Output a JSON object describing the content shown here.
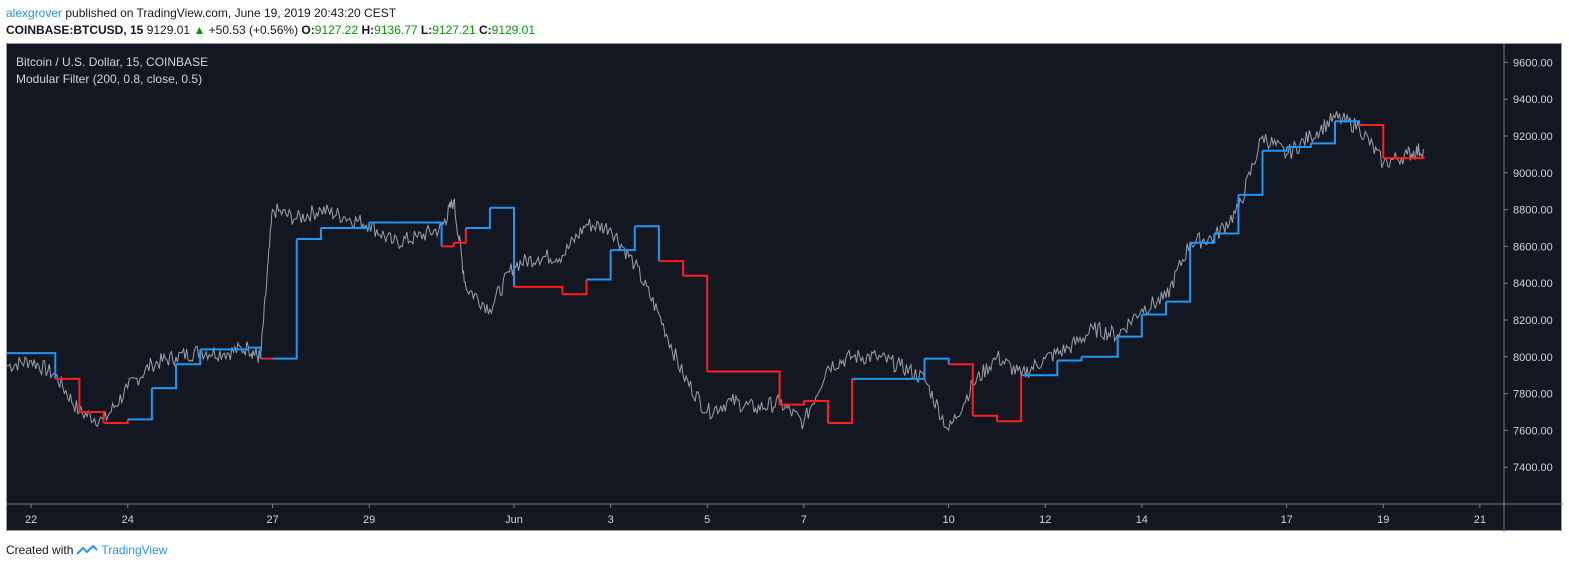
{
  "header": {
    "author": "alexgrover",
    "published": "published on TradingView.com, June 19, 2019 20:43:20 CEST",
    "symbol": "COINBASE:BTCUSD, 15",
    "price": "9129.01",
    "change_arrow": "▲",
    "change": "+50.53 (+0.56%)",
    "o_label": "O:",
    "o_val": "9127.22",
    "h_label": "H:",
    "h_val": "9136.77",
    "l_label": "L:",
    "l_val": "9127.21",
    "c_label": "C:",
    "c_val": "9129.01"
  },
  "legend": {
    "line1": "Bitcoin / U.S. Dollar, 15, COINBASE",
    "line2": "Modular Filter (200, 0.8, close, 0.5)"
  },
  "footer": {
    "created": "Created with",
    "brand": "TradingView"
  },
  "colors": {
    "background": "#131722",
    "price": "#9aa0ab",
    "filter_up": "#2196f3",
    "filter_down": "#ff1e1e",
    "axis_text": "#d1d4dc",
    "grid": "#2a2e39"
  },
  "chart_data": {
    "type": "line",
    "ylim": [
      7200,
      9700
    ],
    "y_ticks": [
      "9600.00",
      "9400.00",
      "9200.00",
      "9000.00",
      "8800.00",
      "8600.00",
      "8400.00",
      "8200.00",
      "8000.00",
      "7800.00",
      "7600.00",
      "7400.00"
    ],
    "x_ticks": [
      "22",
      "24",
      "27",
      "29",
      "Jun",
      "3",
      "5",
      "7",
      "10",
      "12",
      "14",
      "17",
      "19",
      "21"
    ],
    "x_range": [
      "2019-05-21T12:00",
      "2019-06-21T12:00"
    ],
    "series": [
      {
        "kind": "price",
        "x": [
          "2019-05-21T12:00",
          "2019-05-22T00:00",
          "2019-05-22T12:00",
          "2019-05-23T00:00",
          "2019-05-23T12:00",
          "2019-05-24T00:00",
          "2019-05-24T12:00",
          "2019-05-25T00:00",
          "2019-05-25T12:00",
          "2019-05-26T00:00",
          "2019-05-26T12:00",
          "2019-05-26T18:00",
          "2019-05-27T00:00",
          "2019-05-27T12:00",
          "2019-05-28T00:00",
          "2019-05-28T12:00",
          "2019-05-29T00:00",
          "2019-05-29T12:00",
          "2019-05-30T00:00",
          "2019-05-30T12:00",
          "2019-05-30T18:00",
          "2019-05-31T00:00",
          "2019-05-31T12:00",
          "2019-06-01T00:00",
          "2019-06-01T12:00",
          "2019-06-02T00:00",
          "2019-06-02T12:00",
          "2019-06-03T00:00",
          "2019-06-03T12:00",
          "2019-06-04T00:00",
          "2019-06-04T12:00",
          "2019-06-05T00:00",
          "2019-06-05T12:00",
          "2019-06-06T00:00",
          "2019-06-06T12:00",
          "2019-06-07T00:00",
          "2019-06-07T12:00",
          "2019-06-08T00:00",
          "2019-06-08T12:00",
          "2019-06-09T00:00",
          "2019-06-09T12:00",
          "2019-06-10T00:00",
          "2019-06-10T12:00",
          "2019-06-11T00:00",
          "2019-06-11T12:00",
          "2019-06-12T00:00",
          "2019-06-12T12:00",
          "2019-06-13T00:00",
          "2019-06-13T12:00",
          "2019-06-14T00:00",
          "2019-06-14T12:00",
          "2019-06-15T00:00",
          "2019-06-15T12:00",
          "2019-06-16T00:00",
          "2019-06-16T12:00",
          "2019-06-17T00:00",
          "2019-06-17T12:00",
          "2019-06-18T00:00",
          "2019-06-18T12:00",
          "2019-06-19T00:00",
          "2019-06-19T12:00",
          "2019-06-19T20:00"
        ],
        "values": [
          7950,
          7980,
          7900,
          7700,
          7650,
          7830,
          7960,
          8000,
          8030,
          8020,
          8050,
          7990,
          8800,
          8750,
          8800,
          8760,
          8720,
          8620,
          8650,
          8700,
          8850,
          8380,
          8260,
          8500,
          8540,
          8550,
          8720,
          8700,
          8500,
          8230,
          7900,
          7700,
          7760,
          7720,
          7750,
          7640,
          7950,
          8000,
          8000,
          7950,
          7880,
          7600,
          7850,
          8000,
          7900,
          7990,
          8050,
          8150,
          8120,
          8260,
          8320,
          8620,
          8650,
          8800,
          9200,
          9100,
          9200,
          9300,
          9250,
          9050,
          9100,
          9129
        ]
      },
      {
        "kind": "filter",
        "x": [
          "2019-05-21T12:00",
          "2019-05-22T06:00",
          "2019-05-22T12:00",
          "2019-05-23T00:00",
          "2019-05-23T12:00",
          "2019-05-24T00:00",
          "2019-05-24T12:00",
          "2019-05-25T00:00",
          "2019-05-25T12:00",
          "2019-05-26T12:00",
          "2019-05-26T18:00",
          "2019-05-27T00:00",
          "2019-05-27T12:00",
          "2019-05-28T00:00",
          "2019-05-29T00:00",
          "2019-05-29T12:00",
          "2019-05-30T12:00",
          "2019-05-30T18:00",
          "2019-05-31T00:00",
          "2019-05-31T12:00",
          "2019-06-01T00:00",
          "2019-06-02T00:00",
          "2019-06-02T12:00",
          "2019-06-03T00:00",
          "2019-06-03T12:00",
          "2019-06-04T00:00",
          "2019-06-04T12:00",
          "2019-06-05T00:00",
          "2019-06-06T12:00",
          "2019-06-07T00:00",
          "2019-06-07T12:00",
          "2019-06-08T00:00",
          "2019-06-09T12:00",
          "2019-06-10T00:00",
          "2019-06-10T12:00",
          "2019-06-11T00:00",
          "2019-06-11T12:00",
          "2019-06-12T06:00",
          "2019-06-12T18:00",
          "2019-06-13T12:00",
          "2019-06-14T00:00",
          "2019-06-14T12:00",
          "2019-06-15T00:00",
          "2019-06-15T12:00",
          "2019-06-16T00:00",
          "2019-06-16T12:00",
          "2019-06-17T00:00",
          "2019-06-17T12:00",
          "2019-06-18T00:00",
          "2019-06-18T12:00",
          "2019-06-19T00:00",
          "2019-06-19T20:00"
        ],
        "values": [
          8020,
          8020,
          7880,
          7700,
          7640,
          7660,
          7830,
          7960,
          8040,
          8050,
          7990,
          7990,
          8640,
          8700,
          8730,
          8730,
          8600,
          8620,
          8700,
          8810,
          8380,
          8340,
          8420,
          8580,
          8710,
          8520,
          8440,
          7920,
          7740,
          7760,
          7640,
          7880,
          7990,
          7960,
          7680,
          7650,
          7900,
          7980,
          8000,
          8110,
          8230,
          8300,
          8620,
          8670,
          8880,
          9120,
          9140,
          9160,
          9280,
          9260,
          9080,
          9090
        ],
        "direction": [
          "up",
          "up",
          "down",
          "down",
          "down",
          "up",
          "up",
          "up",
          "up",
          "up",
          "down",
          "up",
          "up",
          "up",
          "up",
          "up",
          "down",
          "down",
          "up",
          "up",
          "down",
          "down",
          "up",
          "up",
          "up",
          "down",
          "down",
          "down",
          "down",
          "down",
          "down",
          "up",
          "up",
          "down",
          "down",
          "down",
          "up",
          "up",
          "up",
          "up",
          "up",
          "up",
          "up",
          "up",
          "up",
          "up",
          "up",
          "up",
          "up",
          "down",
          "down",
          "down"
        ]
      }
    ]
  }
}
